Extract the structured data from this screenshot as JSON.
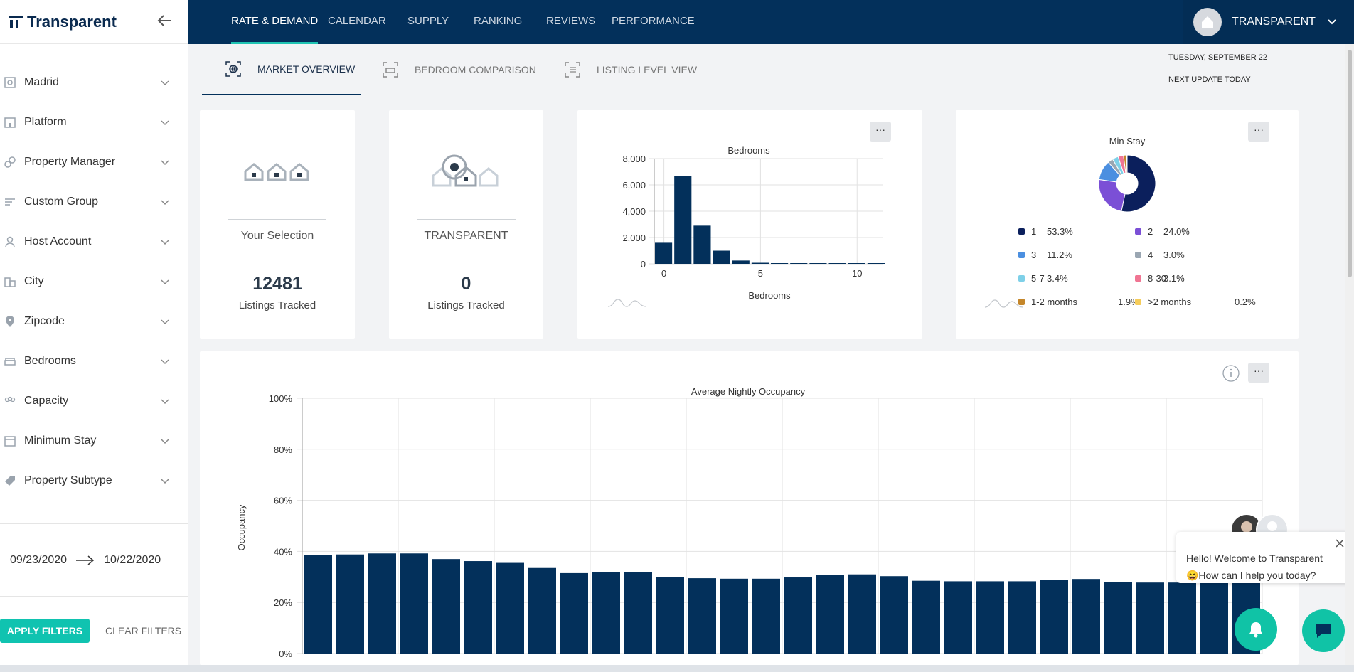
{
  "brand": {
    "name": "Transparent"
  },
  "sidebar": {
    "filters": [
      {
        "label": "Madrid",
        "icon": "network-icon"
      },
      {
        "label": "Platform",
        "icon": "building-icon"
      },
      {
        "label": "Property Manager",
        "icon": "link-icon"
      },
      {
        "label": "Custom Group",
        "icon": "list-icon"
      },
      {
        "label": "Host Account",
        "icon": "person-icon"
      },
      {
        "label": "City",
        "icon": "city-icon"
      },
      {
        "label": "Zipcode",
        "icon": "pin-icon"
      },
      {
        "label": "Bedrooms",
        "icon": "bed-icon"
      },
      {
        "label": "Capacity",
        "icon": "group-icon"
      },
      {
        "label": "Minimum Stay",
        "icon": "calendar-icon"
      },
      {
        "label": "Property Subtype",
        "icon": "tag-icon"
      }
    ],
    "date_start": "09/23/2020",
    "date_end": "10/22/2020",
    "apply_label": "APPLY FILTERS",
    "clear_label": "CLEAR FILTERS"
  },
  "topnav": {
    "items": [
      "RATE & DEMAND",
      "CALENDAR",
      "SUPPLY",
      "RANKING",
      "REVIEWS",
      "PERFORMANCE"
    ],
    "active": "RATE & DEMAND",
    "user": "TRANSPARENT"
  },
  "subtabs": {
    "items": [
      "MARKET OVERVIEW",
      "BEDROOM COMPARISON",
      "LISTING LEVEL VIEW"
    ],
    "active": "MARKET OVERVIEW"
  },
  "date_info": {
    "today": "TUESDAY, SEPTEMBER 22",
    "next_update": "NEXT UPDATE TODAY"
  },
  "cards": {
    "selection": {
      "title": "Your Selection",
      "value": "12481",
      "label": "Listings Tracked"
    },
    "transparent": {
      "title": "TRANSPARENT",
      "value": "0",
      "label": "Listings Tracked"
    }
  },
  "menu_label": "···",
  "colors": {
    "navy": "#03305b",
    "teal": "#10c3b0",
    "bar": "#03305b"
  },
  "chart_data": [
    {
      "type": "bar",
      "title": "Bedrooms",
      "xlabel": "Bedrooms",
      "ylabel": "",
      "x": [
        0,
        1,
        2,
        3,
        4,
        5,
        6,
        7,
        8,
        9,
        10,
        11
      ],
      "values": [
        1600,
        6700,
        2900,
        1000,
        250,
        80,
        30,
        20,
        10,
        10,
        5,
        5
      ],
      "ylim": [
        0,
        8000
      ],
      "yticks": [
        "0",
        "2,000",
        "4,000",
        "6,000",
        "8,000"
      ],
      "xticks": [
        "0",
        "5",
        "10"
      ],
      "grid": true
    },
    {
      "type": "pie",
      "title": "Min Stay",
      "slices": [
        {
          "label": "1",
          "value": 53.3,
          "display": "53.3%",
          "color": "#0b1f5c"
        },
        {
          "label": "2",
          "value": 24.0,
          "display": "24.0%",
          "color": "#7b4fd6"
        },
        {
          "label": "3",
          "value": 11.2,
          "display": "11.2%",
          "color": "#4b8fe0"
        },
        {
          "label": "4",
          "value": 3.0,
          "display": "3.0%",
          "color": "#9aa6b2"
        },
        {
          "label": "5-7",
          "value": 3.4,
          "display": "3.4%",
          "color": "#7ed0e8"
        },
        {
          "label": "8-30",
          "value": 3.1,
          "display": "3.1%",
          "color": "#f07593"
        },
        {
          "label": "1-2 months",
          "value": 1.9,
          "display": "1.9%",
          "color": "#c4862a"
        },
        {
          "label": ">2 months",
          "value": 0.2,
          "display": "0.2%",
          "color": "#f5cc5a"
        }
      ]
    },
    {
      "type": "bar",
      "title": "Average Nightly Occupancy",
      "ylabel": "Occupancy",
      "xlabel": "",
      "ylim": [
        0,
        100
      ],
      "yticks": [
        "0%",
        "20%",
        "40%",
        "60%",
        "80%",
        "100%"
      ],
      "values": [
        38.5,
        38.8,
        39.2,
        39.2,
        37,
        36.2,
        35.5,
        33.5,
        31.5,
        32,
        32,
        30,
        29.5,
        29.3,
        29.3,
        29.8,
        30.8,
        31,
        30.3,
        28.5,
        28.3,
        28.3,
        28.3,
        28.8,
        29.2,
        28,
        27.8,
        27.8,
        28,
        28.5
      ],
      "grid": true
    }
  ],
  "chat": {
    "line1": "Hello! Welcome to Transparent",
    "line2": "😄How can I help you today?"
  }
}
